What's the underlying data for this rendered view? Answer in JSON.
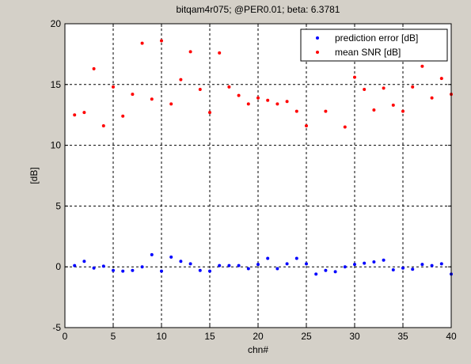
{
  "chart_data": {
    "type": "scatter",
    "title": "bitqam4r075; @PER0.01; beta: 6.3781",
    "xlabel": "chn#",
    "ylabel": "[dB]",
    "xlim": [
      0,
      40
    ],
    "ylim": [
      -5,
      20
    ],
    "xticks": [
      0,
      5,
      10,
      15,
      20,
      25,
      30,
      35,
      40
    ],
    "yticks": [
      -5,
      0,
      5,
      10,
      15,
      20
    ],
    "grid": true,
    "legend_position": "top-right",
    "x": [
      1,
      2,
      3,
      4,
      5,
      6,
      7,
      8,
      9,
      10,
      11,
      12,
      13,
      14,
      15,
      16,
      17,
      18,
      19,
      20,
      21,
      22,
      23,
      24,
      25,
      26,
      27,
      28,
      29,
      30,
      31,
      32,
      33,
      34,
      35,
      36,
      37,
      38,
      39,
      40
    ],
    "series": [
      {
        "name": "prediction error [dB]",
        "color": "#0000ff",
        "values": [
          0.1,
          0.45,
          -0.1,
          0.05,
          -0.3,
          -0.35,
          -0.3,
          0.0,
          1.0,
          -0.35,
          0.8,
          0.45,
          0.25,
          -0.3,
          -0.35,
          0.1,
          0.1,
          0.1,
          -0.15,
          0.2,
          0.7,
          -0.15,
          0.25,
          0.7,
          0.25,
          -0.6,
          -0.3,
          -0.4,
          0.0,
          0.2,
          0.3,
          0.4,
          0.55,
          -0.25,
          -0.1,
          -0.2,
          0.2,
          0.1,
          0.25,
          -0.6
        ]
      },
      {
        "name": "mean SNR [dB]",
        "color": "#ff0000",
        "values": [
          12.5,
          12.7,
          16.3,
          11.6,
          14.8,
          12.4,
          14.2,
          18.4,
          13.8,
          18.6,
          13.4,
          15.4,
          17.7,
          14.6,
          12.7,
          17.6,
          14.8,
          14.1,
          13.4,
          13.9,
          13.7,
          13.4,
          13.6,
          12.8,
          11.6,
          null,
          12.8,
          null,
          11.5,
          15.6,
          14.6,
          12.9,
          14.7,
          13.3,
          12.8,
          14.8,
          16.5,
          13.9,
          15.5,
          14.2
        ]
      }
    ]
  }
}
